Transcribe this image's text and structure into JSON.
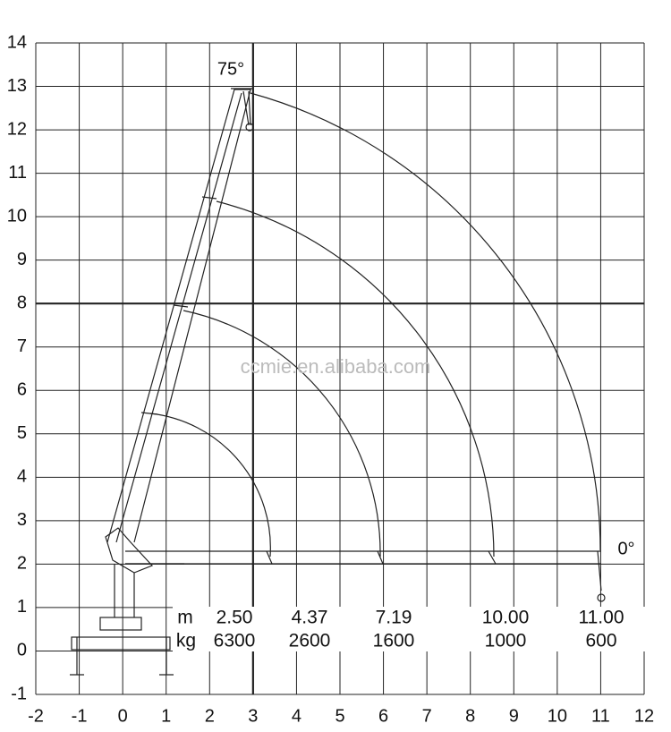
{
  "axes": {
    "xticks": [
      -2,
      -1,
      0,
      1,
      2,
      3,
      4,
      5,
      6,
      7,
      8,
      9,
      10,
      11,
      12
    ],
    "yticks": [
      -1,
      0,
      1,
      2,
      3,
      4,
      5,
      6,
      7,
      8,
      9,
      10,
      11,
      12,
      13,
      14
    ]
  },
  "labels": {
    "angle_max": "75°",
    "angle_min": "0°",
    "watermark": "ccmie.en.alibaba.com"
  },
  "load_table": {
    "radius_unit": "m",
    "load_unit": "kg",
    "radius": [
      "2.50",
      "4.37",
      "7.19",
      "10.00",
      "11.00"
    ],
    "load": [
      "6300",
      "2600",
      "1600",
      "1000",
      "600"
    ]
  }
}
